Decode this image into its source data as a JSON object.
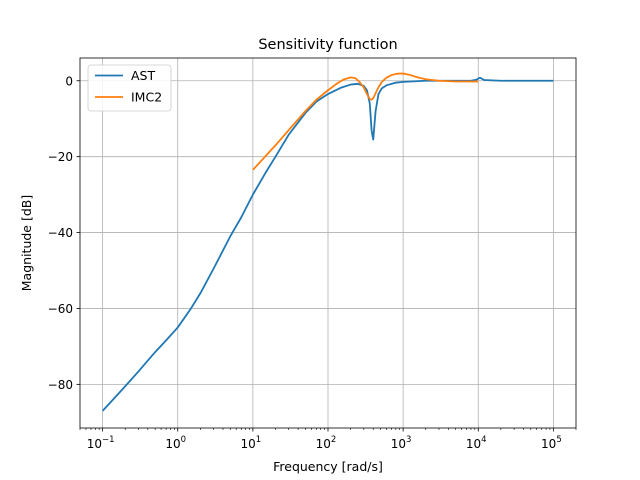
{
  "chart_data": {
    "type": "line",
    "title": "Sensitivity function",
    "xlabel": "Frequency [rad/s]",
    "ylabel": "Magnitude [dB]",
    "xscale": "log",
    "xlim": [
      0.05,
      200000
    ],
    "ylim": [
      -91.5,
      6
    ],
    "x_ticks": [
      {
        "value": 0.1,
        "base": "10",
        "exp": "−1"
      },
      {
        "value": 1,
        "base": "10",
        "exp": "0"
      },
      {
        "value": 10,
        "base": "10",
        "exp": "1"
      },
      {
        "value": 100,
        "base": "10",
        "exp": "2"
      },
      {
        "value": 1000,
        "base": "10",
        "exp": "3"
      },
      {
        "value": 10000,
        "base": "10",
        "exp": "4"
      },
      {
        "value": 100000,
        "base": "10",
        "exp": "5"
      }
    ],
    "y_ticks": [
      {
        "value": 0,
        "label": "0"
      },
      {
        "value": -20,
        "label": "−20"
      },
      {
        "value": -40,
        "label": "−40"
      },
      {
        "value": -60,
        "label": "−60"
      },
      {
        "value": -80,
        "label": "−80"
      }
    ],
    "grid": true,
    "legend": "upper-left",
    "series": [
      {
        "name": "AST",
        "color": "#1f77b4",
        "x": [
          0.1,
          0.15,
          0.2,
          0.3,
          0.5,
          0.7,
          1,
          1.5,
          2,
          3,
          5,
          7,
          10,
          15,
          20,
          30,
          50,
          70,
          100,
          150,
          200,
          250,
          300,
          330,
          360,
          380,
          400,
          430,
          470,
          520,
          600,
          800,
          1000,
          2000,
          5000,
          8000,
          9500,
          10500,
          12000,
          20000,
          50000,
          100000
        ],
        "y": [
          -87,
          -83.2,
          -80.5,
          -76.6,
          -71.5,
          -68.4,
          -65,
          -60,
          -56,
          -49.5,
          -41,
          -36,
          -30,
          -24,
          -20,
          -14.2,
          -8.5,
          -5.5,
          -3.5,
          -1.8,
          -1,
          -0.8,
          -1.4,
          -2.5,
          -6,
          -13,
          -15.5,
          -8,
          -3.5,
          -2,
          -1.2,
          -0.5,
          -0.3,
          0,
          0,
          0,
          0.3,
          0.8,
          0.2,
          0,
          0,
          0
        ]
      },
      {
        "name": "IMC2",
        "color": "#ff7f0e",
        "x": [
          10,
          15,
          20,
          30,
          50,
          70,
          100,
          130,
          160,
          200,
          230,
          260,
          300,
          330,
          360,
          380,
          400,
          430,
          470,
          520,
          600,
          700,
          800,
          900,
          1000,
          1200,
          1500,
          2000,
          3000,
          5000,
          10000
        ],
        "y": [
          -23.5,
          -19.7,
          -17,
          -13,
          -8,
          -5,
          -2.5,
          -0.8,
          0.3,
          0.9,
          0.7,
          -0.2,
          -1.8,
          -3.5,
          -4.8,
          -5,
          -4.6,
          -3.3,
          -1.7,
          -0.3,
          0.8,
          1.5,
          1.8,
          1.9,
          1.9,
          1.6,
          1,
          0.4,
          0,
          -0.2,
          -0.2
        ]
      }
    ]
  }
}
